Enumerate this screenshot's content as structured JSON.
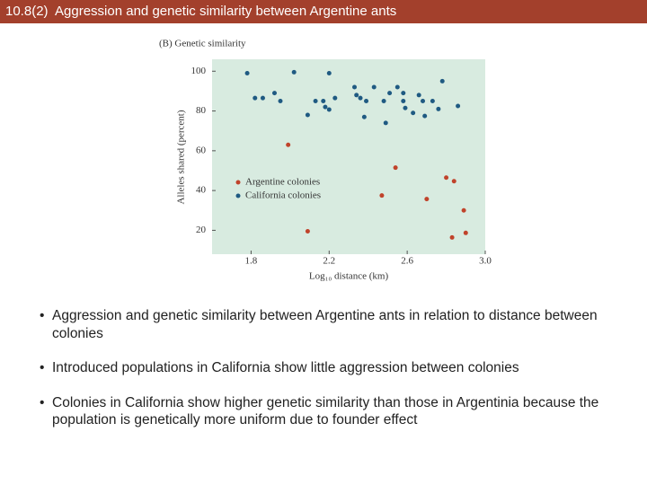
{
  "header": {
    "title": "10.8(2)  Aggression and genetic similarity between Argentine ants"
  },
  "chart_data": {
    "type": "scatter",
    "title": "(B) Genetic similarity",
    "x_label": "Log₁₀ distance (km)",
    "y_label": "Alleles shared (percent)",
    "xlim": [
      1.6,
      3.0
    ],
    "ylim": [
      8,
      106
    ],
    "xticks": [
      1.8,
      2.2,
      2.6,
      {
        "value": 3,
        "label": "3.0"
      }
    ],
    "yticks": [
      20,
      40,
      60,
      80,
      100
    ],
    "legend": "lower-left",
    "series": [
      {
        "name": "Argentine colonies",
        "color": "#c0432b",
        "x": [
          1.99,
          2.09,
          2.54,
          2.47,
          2.7,
          2.8,
          2.84,
          2.83,
          2.89,
          2.9
        ],
        "values": [
          63,
          19.5,
          51.5,
          37.5,
          35.7,
          46.5,
          44.7,
          16.4,
          30,
          18.7
        ]
      },
      {
        "name": "California colonies",
        "color": "#1f5a82",
        "x": [
          1.78,
          1.82,
          1.86,
          1.92,
          1.95,
          2.02,
          2.09,
          2.13,
          2.17,
          2.18,
          2.2,
          2.2,
          2.23,
          2.33,
          2.34,
          2.36,
          2.38,
          2.39,
          2.43,
          2.48,
          2.49,
          2.51,
          2.55,
          2.58,
          2.58,
          2.59,
          2.63,
          2.66,
          2.68,
          2.69,
          2.73,
          2.76,
          2.78,
          2.86
        ],
        "values": [
          99,
          86.5,
          86.5,
          89,
          85,
          99.5,
          78,
          85,
          85,
          82,
          80.7,
          99,
          86.5,
          92,
          88,
          86.5,
          77,
          85,
          92,
          85,
          74,
          89,
          92,
          89,
          85,
          81.5,
          79,
          88,
          85,
          77.5,
          85,
          81,
          95,
          82.5
        ]
      }
    ]
  },
  "bullets": [
    "Aggression and genetic similarity between Argentine ants in relation to distance between colonies",
    "Introduced populations in California show little aggression between colonies",
    "Colonies in California show higher genetic similarity than those in Argentinia because the population is genetically more uniform due to founder effect"
  ]
}
